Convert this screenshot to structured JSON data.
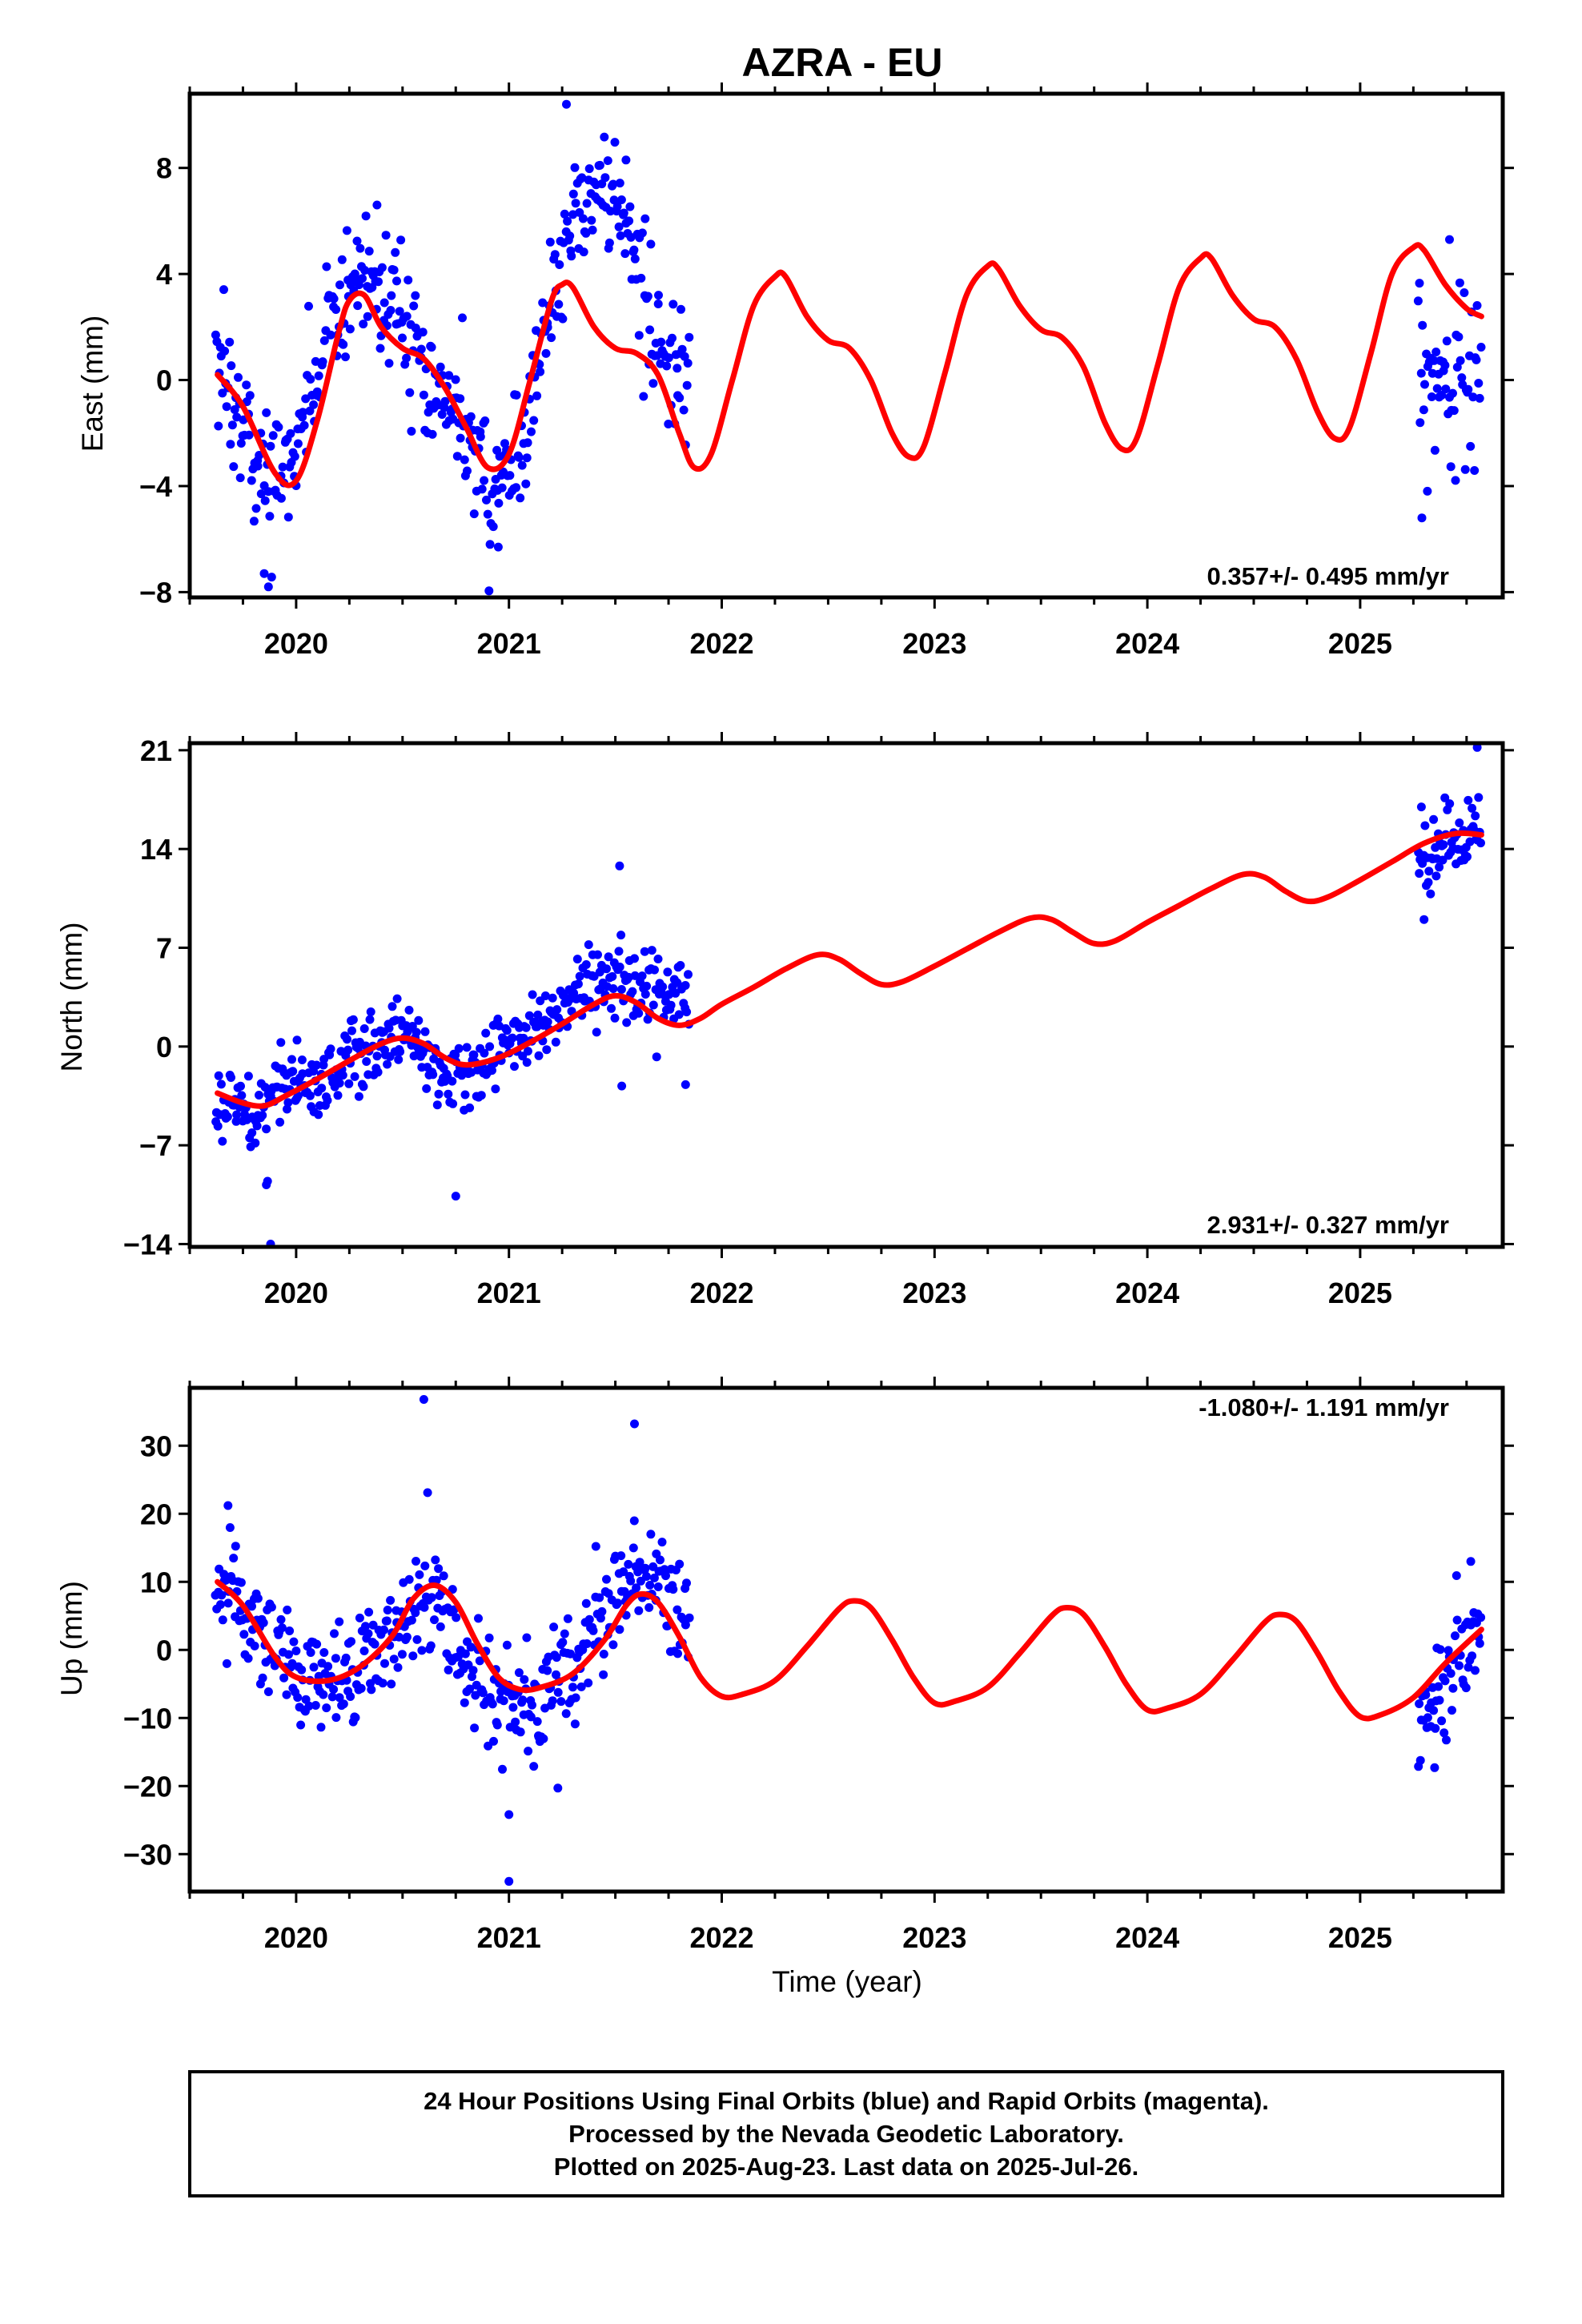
{
  "title": "AZRA - EU",
  "xlabel": "Time (year)",
  "footer": {
    "line1": "24 Hour Positions Using Final Orbits (blue) and Rapid Orbits (magenta).",
    "line2": "Processed by the Nevada Geodetic Laboratory.",
    "line3": "Plotted on 2025-Aug-23. Last data on 2025-Jul-26."
  },
  "colors": {
    "observations": "#0000ff",
    "model": "#ff0000",
    "frame": "#000000"
  },
  "chart_data": [
    {
      "type": "scatter",
      "ylabel": "East (mm)",
      "rate_label": "0.357+/- 0.495 mm/yr",
      "xlim": [
        2019.5,
        2025.67
      ],
      "ylim": [
        -8.2,
        10.8
      ],
      "yticks": [
        -8,
        -4,
        0,
        4,
        8
      ],
      "xticks": [
        2020,
        2021,
        2022,
        2023,
        2024,
        2025
      ],
      "ytick_labels": [
        "−8",
        "−4",
        "0",
        "4",
        "8"
      ],
      "xtick_labels": [
        "2020",
        "2021",
        "2022",
        "2023",
        "2024",
        "2025"
      ],
      "grid": false,
      "series": [
        {
          "kind": "points",
          "segments": [
            {
              "x0": 2019.62,
              "x1": 2021.85,
              "knots_x": [
                2019.62,
                2019.72,
                2019.82,
                2019.92,
                2020.02,
                2020.12,
                2020.22,
                2020.3,
                2020.4,
                2020.5,
                2020.6,
                2020.7,
                2020.8,
                2020.9,
                2021.0,
                2021.1,
                2021.2,
                2021.3,
                2021.4,
                2021.5,
                2021.6,
                2021.7,
                2021.8,
                2021.85
              ],
              "knots_y": [
                0.3,
                -1.0,
                -3.2,
                -4.2,
                -2.0,
                0.5,
                2.8,
                4.3,
                3.5,
                2.3,
                0.8,
                -0.5,
                -2.5,
                -4.0,
                -3.8,
                -1.0,
                2.5,
                6.2,
                7.0,
                6.5,
                4.0,
                1.5,
                0.5,
                0.4
              ],
              "spread": 1.3
            },
            {
              "x0": 2025.27,
              "x1": 2025.57,
              "knots_x": [
                2025.27,
                2025.35,
                2025.45,
                2025.57
              ],
              "knots_y": [
                0.2,
                -0.2,
                0.0,
                0.0
              ],
              "spread": 1.6
            }
          ],
          "outliers": [
            [
              2019.87,
              -7.8
            ],
            [
              2019.85,
              -7.3
            ],
            [
              2020.38,
              6.6
            ],
            [
              2020.95,
              -6.3
            ],
            [
              2021.27,
              10.4
            ],
            [
              2021.55,
              8.3
            ],
            [
              2025.42,
              5.3
            ],
            [
              2025.29,
              -5.2
            ]
          ]
        },
        {
          "kind": "model",
          "x": [
            2019.63,
            2019.75,
            2019.9,
            2020.0,
            2020.1,
            2020.2,
            2020.25,
            2020.32,
            2020.4,
            2020.5,
            2020.6,
            2020.7,
            2020.8,
            2020.9,
            2021.0,
            2021.1,
            2021.2,
            2021.25,
            2021.3,
            2021.4,
            2021.5,
            2021.6,
            2021.7,
            2021.8,
            2021.87,
            2021.95,
            2022.05,
            2022.15,
            2022.25,
            2022.3,
            2022.4,
            2022.5,
            2022.6,
            2022.7,
            2022.8,
            2022.88,
            2022.95,
            2023.05,
            2023.15,
            2023.25,
            2023.3,
            2023.4,
            2023.5,
            2023.6,
            2023.7,
            2023.8,
            2023.88,
            2023.95,
            2024.05,
            2024.15,
            2024.25,
            2024.3,
            2024.4,
            2024.5,
            2024.6,
            2024.7,
            2024.8,
            2024.88,
            2024.95,
            2025.05,
            2025.15,
            2025.25,
            2025.3,
            2025.4,
            2025.5,
            2025.57
          ],
          "y": [
            0.2,
            -1.0,
            -3.5,
            -3.8,
            -1.5,
            1.8,
            3.0,
            3.2,
            2.0,
            1.2,
            0.8,
            -0.3,
            -1.8,
            -3.3,
            -2.8,
            0.0,
            3.0,
            3.6,
            3.5,
            2.0,
            1.2,
            1.0,
            0.2,
            -2.0,
            -3.3,
            -2.8,
            0.0,
            2.8,
            3.9,
            3.9,
            2.4,
            1.5,
            1.2,
            0.0,
            -2.0,
            -2.9,
            -2.5,
            0.3,
            3.2,
            4.3,
            4.2,
            2.8,
            1.9,
            1.6,
            0.5,
            -1.6,
            -2.6,
            -2.2,
            0.6,
            3.5,
            4.6,
            4.6,
            3.2,
            2.3,
            2.0,
            0.8,
            -1.2,
            -2.2,
            -1.8,
            1.0,
            4.0,
            5.0,
            4.9,
            3.6,
            2.7,
            2.4
          ]
        }
      ]
    },
    {
      "type": "scatter",
      "ylabel": "North (mm)",
      "rate_label": "2.931+/- 0.327 mm/yr",
      "xlim": [
        2019.5,
        2025.67
      ],
      "ylim": [
        -14.2,
        21.5
      ],
      "yticks": [
        -14,
        -7,
        0,
        7,
        14,
        21
      ],
      "xticks": [
        2020,
        2021,
        2022,
        2023,
        2024,
        2025
      ],
      "ytick_labels": [
        "−14",
        "−7",
        "0",
        "7",
        "14",
        "21"
      ],
      "xtick_labels": [
        "2020",
        "2021",
        "2022",
        "2023",
        "2024",
        "2025"
      ],
      "grid": false,
      "series": [
        {
          "kind": "points",
          "segments": [
            {
              "x0": 2019.62,
              "x1": 2021.85,
              "knots_x": [
                2019.62,
                2019.8,
                2020.0,
                2020.2,
                2020.4,
                2020.5,
                2020.6,
                2020.7,
                2020.8,
                2021.0,
                2021.2,
                2021.35,
                2021.5,
                2021.6,
                2021.7,
                2021.85
              ],
              "knots_y": [
                -4.0,
                -5.0,
                -2.5,
                -1.5,
                0.0,
                1.0,
                -1.0,
                -2.5,
                -2.0,
                0.0,
                2.0,
                4.0,
                4.8,
                4.5,
                4.2,
                3.8
              ],
              "spread": 1.4
            },
            {
              "x0": 2025.27,
              "x1": 2025.57,
              "knots_x": [
                2025.27,
                2025.4,
                2025.57
              ],
              "knots_y": [
                13.0,
                14.0,
                15.5
              ],
              "spread": 1.5
            }
          ],
          "outliers": [
            [
              2019.86,
              -9.8
            ],
            [
              2019.88,
              -14.0
            ],
            [
              2020.75,
              -10.6
            ],
            [
              2021.52,
              12.8
            ],
            [
              2021.53,
              -2.8
            ],
            [
              2021.83,
              -2.7
            ],
            [
              2025.3,
              9.0
            ],
            [
              2025.55,
              21.2
            ]
          ]
        },
        {
          "kind": "model",
          "x": [
            2019.63,
            2019.75,
            2019.85,
            2019.95,
            2020.1,
            2020.25,
            2020.4,
            2020.5,
            2020.6,
            2020.7,
            2020.8,
            2020.95,
            2021.1,
            2021.25,
            2021.4,
            2021.5,
            2021.6,
            2021.7,
            2021.8,
            2021.9,
            2022.0,
            2022.15,
            2022.3,
            2022.45,
            2022.55,
            2022.65,
            2022.75,
            2022.85,
            2023.0,
            2023.15,
            2023.3,
            2023.45,
            2023.55,
            2023.65,
            2023.75,
            2023.85,
            2024.0,
            2024.15,
            2024.3,
            2024.45,
            2024.55,
            2024.65,
            2024.75,
            2024.85,
            2025.0,
            2025.15,
            2025.3,
            2025.45,
            2025.57
          ],
          "y": [
            -3.3,
            -4.0,
            -4.2,
            -3.5,
            -2.3,
            -1.0,
            0.2,
            0.6,
            0.2,
            -0.8,
            -1.3,
            -0.8,
            0.3,
            1.6,
            3.0,
            3.6,
            3.1,
            2.0,
            1.5,
            2.0,
            3.0,
            4.2,
            5.5,
            6.5,
            6.2,
            5.2,
            4.4,
            4.6,
            5.7,
            6.9,
            8.1,
            9.1,
            9.0,
            8.1,
            7.3,
            7.5,
            8.8,
            10.0,
            11.2,
            12.2,
            12.0,
            11.0,
            10.3,
            10.6,
            11.8,
            13.1,
            14.4,
            15.1,
            15.0
          ]
        }
      ]
    },
    {
      "type": "scatter",
      "ylabel": "Up (mm)",
      "rate_label": "-1.080+/- 1.191 mm/yr",
      "xlim": [
        2019.5,
        2025.67
      ],
      "ylim": [
        -35.5,
        38.5
      ],
      "yticks": [
        -30,
        -20,
        -10,
        0,
        10,
        20,
        30
      ],
      "xticks": [
        2020,
        2021,
        2022,
        2023,
        2024,
        2025
      ],
      "ytick_labels": [
        "−30",
        "−20",
        "−10",
        "0",
        "10",
        "20",
        "30"
      ],
      "xtick_labels": [
        "2020",
        "2021",
        "2022",
        "2023",
        "2024",
        "2025"
      ],
      "grid": false,
      "series": [
        {
          "kind": "points",
          "segments": [
            {
              "x0": 2019.62,
              "x1": 2021.85,
              "knots_x": [
                2019.62,
                2019.75,
                2019.9,
                2020.0,
                2020.15,
                2020.3,
                2020.45,
                2020.6,
                2020.7,
                2020.8,
                2020.95,
                2021.1,
                2021.25,
                2021.4,
                2021.5,
                2021.6,
                2021.7,
                2021.8,
                2021.85
              ],
              "knots_y": [
                10.0,
                7.0,
                1.0,
                -4.0,
                -5.0,
                -2.0,
                3.0,
                8.0,
                5.0,
                -2.0,
                -8.0,
                -9.0,
                -5.0,
                2.0,
                8.0,
                13.0,
                10.0,
                5.0,
                5.0
              ],
              "spread": 4.2
            },
            {
              "x0": 2025.27,
              "x1": 2025.57,
              "knots_x": [
                2025.27,
                2025.35,
                2025.45,
                2025.57
              ],
              "knots_y": [
                -8.0,
                -7.0,
                -2.0,
                4.0
              ],
              "spread": 4.5
            }
          ],
          "outliers": [
            [
              2020.6,
              36.8
            ],
            [
              2021.59,
              33.2
            ],
            [
              2021.0,
              -24.2
            ],
            [
              2021.0,
              -34.0
            ],
            [
              2021.23,
              -20.3
            ],
            [
              2019.68,
              21.2
            ],
            [
              2025.35,
              -17.3
            ],
            [
              2025.52,
              13.0
            ]
          ]
        },
        {
          "kind": "model",
          "x": [
            2019.63,
            2019.75,
            2019.9,
            2020.0,
            2020.15,
            2020.3,
            2020.45,
            2020.55,
            2020.65,
            2020.75,
            2020.85,
            2020.95,
            2021.05,
            2021.15,
            2021.3,
            2021.45,
            2021.55,
            2021.62,
            2021.7,
            2021.8,
            2021.9,
            2022.0,
            2022.1,
            2022.25,
            2022.4,
            2022.55,
            2022.62,
            2022.7,
            2022.8,
            2022.9,
            2023.0,
            2023.1,
            2023.25,
            2023.4,
            2023.55,
            2023.62,
            2023.7,
            2023.8,
            2023.9,
            2024.0,
            2024.1,
            2024.25,
            2024.4,
            2024.55,
            2024.62,
            2024.7,
            2024.8,
            2024.9,
            2025.0,
            2025.1,
            2025.25,
            2025.4,
            2025.57
          ],
          "y": [
            10.0,
            6.5,
            -1.0,
            -4.0,
            -4.5,
            -2.5,
            2.0,
            7.5,
            9.5,
            7.0,
            1.0,
            -4.0,
            -5.8,
            -5.5,
            -3.5,
            1.5,
            6.5,
            8.2,
            7.0,
            2.0,
            -4.0,
            -6.8,
            -6.5,
            -4.5,
            0.5,
            6.0,
            7.2,
            6.2,
            1.5,
            -4.0,
            -7.8,
            -7.5,
            -5.5,
            -0.5,
            5.0,
            6.2,
            5.2,
            0.5,
            -5.0,
            -8.8,
            -8.5,
            -6.5,
            -1.5,
            4.0,
            5.2,
            4.2,
            -0.5,
            -6.0,
            -9.8,
            -9.5,
            -7.0,
            -2.0,
            3.0
          ]
        }
      ]
    }
  ]
}
